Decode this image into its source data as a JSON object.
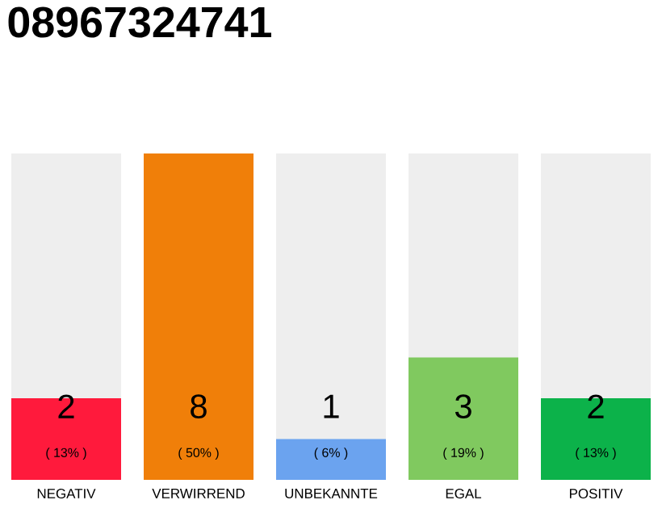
{
  "chart_data": {
    "type": "bar",
    "title": "08967324741",
    "categories": [
      "NEGATIV",
      "VERWIRREND",
      "UNBEKANNTE",
      "EGAL",
      "POSITIV"
    ],
    "values": [
      2,
      8,
      1,
      3,
      2
    ],
    "colors": [
      "#ff1a3c",
      "#f07f09",
      "#6ba3ef",
      "#80c95f",
      "#0cb24a"
    ],
    "data_labels": true,
    "annotations": [
      "( 13% )",
      "( 50% )",
      "( 6% )",
      "( 19% )",
      "( 13% )"
    ]
  }
}
